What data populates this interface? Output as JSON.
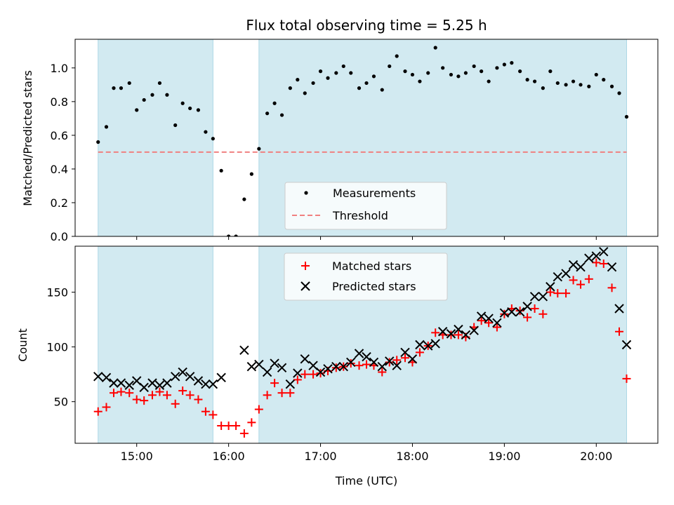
{
  "chart_data": [
    {
      "type": "scatter",
      "title": "Flux total observing time = 5.25 h",
      "xlabel": "",
      "ylabel": "Matched/Predicted stars",
      "ylim": [
        0,
        1.17
      ],
      "yticks": [
        "0.0",
        "0.2",
        "0.4",
        "0.6",
        "0.8",
        "1.0"
      ],
      "ytick_values": [
        0,
        0.2,
        0.4,
        0.6,
        0.8,
        1.0
      ],
      "threshold": 0.5,
      "shaded_intervals_hours": [
        [
          14.58,
          15.83
        ],
        [
          16.33,
          20.33
        ]
      ],
      "shade_color": "#add8e6",
      "legend_position": "lower-center",
      "legend": [
        {
          "label": "Measurements",
          "marker": "dot",
          "color": "#000000"
        },
        {
          "label": "Threshold",
          "marker": "dashed-line",
          "color": "#f08080"
        }
      ],
      "series": [
        {
          "name": "Measurements",
          "x_hours": [
            14.58,
            14.67,
            14.75,
            14.83,
            14.92,
            15.0,
            15.08,
            15.17,
            15.25,
            15.33,
            15.42,
            15.5,
            15.58,
            15.67,
            15.75,
            15.83,
            15.92,
            16.0,
            16.08,
            16.17,
            16.25,
            16.33,
            16.42,
            16.5,
            16.58,
            16.67,
            16.75,
            16.83,
            16.92,
            17.0,
            17.08,
            17.17,
            17.25,
            17.33,
            17.42,
            17.5,
            17.58,
            17.67,
            17.75,
            17.83,
            17.92,
            18.0,
            18.08,
            18.17,
            18.25,
            18.33,
            18.42,
            18.5,
            18.58,
            18.67,
            18.75,
            18.83,
            18.92,
            19.0,
            19.08,
            19.17,
            19.25,
            19.33,
            19.42,
            19.5,
            19.58,
            19.67,
            19.75,
            19.83,
            19.92,
            20.0,
            20.08,
            20.17,
            20.25,
            20.33
          ],
          "y": [
            0.56,
            0.65,
            0.88,
            0.88,
            0.91,
            0.75,
            0.81,
            0.84,
            0.91,
            0.84,
            0.66,
            0.79,
            0.76,
            0.75,
            0.62,
            0.58,
            0.39,
            0.0,
            0.0,
            0.22,
            0.37,
            0.52,
            0.73,
            0.79,
            0.72,
            0.88,
            0.93,
            0.85,
            0.91,
            0.98,
            0.94,
            0.97,
            1.01,
            0.97,
            0.88,
            0.91,
            0.95,
            0.87,
            1.01,
            1.07,
            0.98,
            0.96,
            0.92,
            0.97,
            1.12,
            1.0,
            0.96,
            0.95,
            0.97,
            1.01,
            0.98,
            0.92,
            1.0,
            1.02,
            1.03,
            0.98,
            0.93,
            0.92,
            0.88,
            0.98,
            0.91,
            0.9,
            0.92,
            0.9,
            0.89,
            0.96,
            0.93,
            0.89,
            0.85,
            0.71
          ]
        }
      ]
    },
    {
      "type": "scatter",
      "title": "",
      "xlabel": "Time (UTC)",
      "ylabel": "Count",
      "ylim": [
        12,
        192
      ],
      "yticks": [
        "50",
        "100",
        "150"
      ],
      "ytick_values": [
        50,
        100,
        150
      ],
      "xticks": [
        "15:00",
        "16:00",
        "17:00",
        "18:00",
        "19:00",
        "20:00"
      ],
      "xtick_values_hours": [
        15,
        16,
        17,
        18,
        19,
        20
      ],
      "xlim_hours": [
        14.33,
        20.67
      ],
      "shaded_intervals_hours": [
        [
          14.58,
          15.83
        ],
        [
          16.33,
          20.33
        ]
      ],
      "shade_color": "#add8e6",
      "legend_position": "upper-center",
      "legend": [
        {
          "label": "Matched stars",
          "marker": "plus",
          "color": "#ff0000"
        },
        {
          "label": "Predicted stars",
          "marker": "x",
          "color": "#000000"
        }
      ],
      "series": [
        {
          "name": "Matched stars",
          "x_hours": [
            14.58,
            14.67,
            14.75,
            14.83,
            14.92,
            15.0,
            15.08,
            15.17,
            15.25,
            15.33,
            15.42,
            15.5,
            15.58,
            15.67,
            15.75,
            15.83,
            15.92,
            16.0,
            16.08,
            16.17,
            16.25,
            16.33,
            16.42,
            16.5,
            16.58,
            16.67,
            16.75,
            16.83,
            16.92,
            17.0,
            17.08,
            17.17,
            17.25,
            17.33,
            17.42,
            17.5,
            17.58,
            17.67,
            17.75,
            17.83,
            17.92,
            18.0,
            18.08,
            18.17,
            18.25,
            18.33,
            18.42,
            18.5,
            18.58,
            18.67,
            18.75,
            18.83,
            18.92,
            19.0,
            19.08,
            19.17,
            19.25,
            19.33,
            19.42,
            19.5,
            19.58,
            19.67,
            19.75,
            19.83,
            19.92,
            20.0,
            20.08,
            20.17,
            20.25,
            20.33
          ],
          "y": [
            41,
            45,
            58,
            59,
            58,
            52,
            51,
            56,
            59,
            56,
            48,
            60,
            56,
            52,
            41,
            38,
            28,
            28,
            28,
            21,
            31,
            43,
            56,
            67,
            58,
            58,
            70,
            75,
            75,
            76,
            78,
            81,
            82,
            85,
            83,
            84,
            83,
            77,
            86,
            88,
            90,
            86,
            95,
            101,
            113,
            111,
            111,
            111,
            109,
            118,
            124,
            122,
            118,
            130,
            135,
            133,
            127,
            135,
            130,
            150,
            149,
            149,
            161,
            157,
            162,
            177,
            176,
            154,
            114,
            71
          ]
        },
        {
          "name": "Predicted stars",
          "x_hours": [
            14.58,
            14.67,
            14.75,
            14.83,
            14.92,
            15.0,
            15.08,
            15.17,
            15.25,
            15.33,
            15.42,
            15.5,
            15.58,
            15.67,
            15.75,
            15.83,
            15.92,
            16.0,
            16.08,
            16.17,
            16.25,
            16.33,
            16.42,
            16.5,
            16.58,
            16.67,
            16.75,
            16.83,
            16.92,
            17.0,
            17.08,
            17.17,
            17.25,
            17.33,
            17.42,
            17.5,
            17.58,
            17.67,
            17.75,
            17.83,
            17.92,
            18.0,
            18.08,
            18.17,
            18.25,
            18.33,
            18.42,
            18.5,
            18.58,
            18.67,
            18.75,
            18.83,
            18.92,
            19.0,
            19.08,
            19.17,
            19.25,
            19.33,
            19.42,
            19.5,
            19.58,
            19.67,
            19.75,
            19.83,
            19.92,
            20.0,
            20.08,
            20.17,
            20.25,
            20.33
          ],
          "y": [
            73,
            72,
            67,
            67,
            65,
            69,
            63,
            67,
            65,
            67,
            73,
            77,
            73,
            69,
            66,
            66,
            72,
            null,
            null,
            97,
            82,
            84,
            77,
            85,
            81,
            66,
            76,
            89,
            83,
            77,
            80,
            82,
            82,
            86,
            94,
            91,
            86,
            82,
            87,
            83,
            95,
            89,
            102,
            101,
            103,
            114,
            112,
            116,
            111,
            115,
            128,
            126,
            122,
            131,
            132,
            132,
            137,
            146,
            146,
            155,
            164,
            167,
            175,
            173,
            181,
            183,
            187,
            173,
            135,
            102
          ]
        }
      ]
    }
  ]
}
